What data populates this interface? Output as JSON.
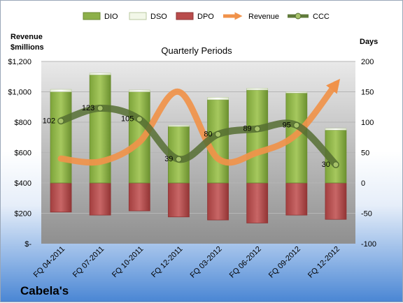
{
  "chart_data": {
    "type": "bar",
    "title": "Cabela's",
    "subtitle": "Quarterly Periods",
    "ylabel_left_line1": "Revenue",
    "ylabel_left_line2": "$millions",
    "ylabel_right": "Days",
    "categories": [
      "FQ 04-2011",
      "FQ 07-2011",
      "FQ 10-2011",
      "FQ 12-2011",
      "FQ 03-2012",
      "FQ 06-2012",
      "FQ 09-2012",
      "FQ 12-2012"
    ],
    "left_axis": {
      "ylim": [
        0,
        1200
      ],
      "ticks": [
        0,
        200,
        400,
        600,
        800,
        1000,
        1200
      ],
      "tick_labels": [
        "$-",
        "$200",
        "$400",
        "$600",
        "$800",
        "$1,000",
        "$1,200"
      ]
    },
    "right_axis": {
      "ylim": [
        -100,
        200
      ],
      "ticks": [
        -100,
        -50,
        0,
        50,
        100,
        150,
        200
      ],
      "tick_labels": [
        "-100",
        "-50",
        "0",
        "50",
        "100",
        "150",
        "200"
      ]
    },
    "series": [
      {
        "name": "DIO",
        "axis": "right",
        "color": "#8db04a",
        "values": [
          150,
          178,
          150,
          93,
          137,
          153,
          148,
          87
        ]
      },
      {
        "name": "DSO",
        "axis": "right",
        "color": "#f2f7e8",
        "values": [
          4,
          3,
          3,
          2,
          4,
          3,
          2,
          3
        ]
      },
      {
        "name": "DPO",
        "axis": "right",
        "color": "#b94c4c",
        "values": [
          -48,
          -53,
          -46,
          -56,
          -61,
          -66,
          -53,
          -60
        ]
      },
      {
        "name": "Revenue",
        "axis": "left",
        "color": "#f0924a",
        "values": [
          560,
          540,
          670,
          1000,
          560,
          600,
          720,
          1050
        ]
      },
      {
        "name": "CCC",
        "axis": "right",
        "color": "#5f7a3a",
        "values": [
          102,
          123,
          105,
          39,
          80,
          89,
          95,
          30
        ]
      }
    ],
    "grid": true,
    "legend": "top"
  }
}
